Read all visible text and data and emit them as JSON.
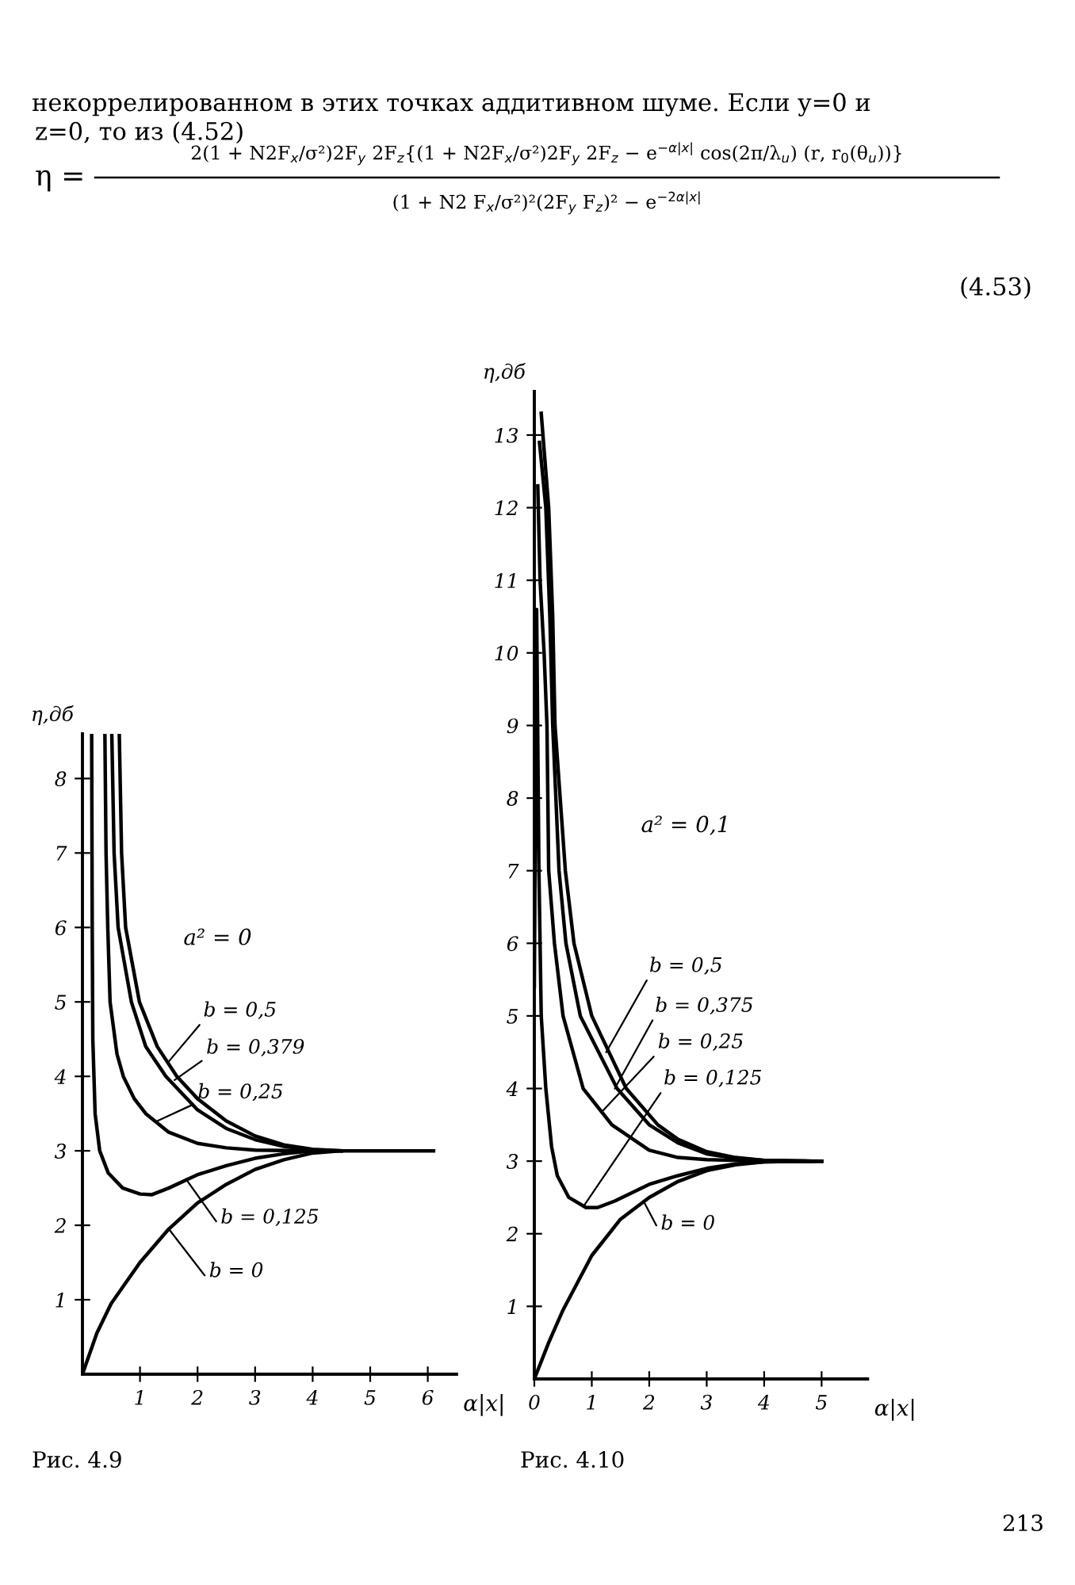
{
  "chart_data": [
    {
      "type": "line",
      "xlabel": "α|x|",
      "ylabel": "η,дб",
      "xlim": [
        0,
        6.5
      ],
      "ylim": [
        0,
        8.6
      ],
      "xticks": [
        1,
        2,
        3,
        4,
        5,
        6
      ],
      "yticks": [
        1,
        2,
        3,
        4,
        5,
        6,
        7,
        8
      ],
      "grid": false,
      "marker": "none",
      "line_style": "solid",
      "series": [
        {
          "color": "#000000",
          "x": [
            0,
            0.25,
            0.5,
            1,
            1.5,
            2,
            2.5,
            3,
            3.5,
            4,
            4.5,
            5,
            6,
            6.1
          ],
          "values": [
            0,
            0.55,
            0.95,
            1.5,
            1.95,
            2.3,
            2.55,
            2.75,
            2.88,
            2.97,
            3.0,
            3.0,
            3.0,
            3.0
          ]
        },
        {
          "color": "#000000",
          "x": [
            0.16,
            0.17,
            0.18,
            0.22,
            0.3,
            0.45,
            0.7,
            1.0,
            1.2,
            1.5,
            2,
            2.5,
            3,
            3.5,
            4,
            6.1
          ],
          "values": [
            8.6,
            6,
            4.5,
            3.5,
            3.0,
            2.7,
            2.5,
            2.42,
            2.41,
            2.5,
            2.68,
            2.8,
            2.9,
            2.96,
            3.0,
            3.0
          ]
        },
        {
          "color": "#000000",
          "x": [
            0.39,
            0.41,
            0.44,
            0.48,
            0.6,
            0.71,
            0.9,
            1.1,
            1.5,
            2,
            2.5,
            3,
            4
          ],
          "values": [
            8.6,
            7,
            6,
            5,
            4.3,
            4,
            3.7,
            3.5,
            3.25,
            3.1,
            3.04,
            3.01,
            3.0
          ]
        },
        {
          "color": "#000000",
          "x": [
            0.51,
            0.55,
            0.62,
            0.85,
            1.1,
            1.45,
            2,
            2.5,
            3,
            3.5,
            4,
            4.5
          ],
          "values": [
            8.6,
            7,
            6,
            5,
            4.4,
            4,
            3.55,
            3.3,
            3.15,
            3.06,
            3.01,
            3.0
          ]
        },
        {
          "color": "#000000",
          "x": [
            0.64,
            0.68,
            0.75,
            0.99,
            1.3,
            1.64,
            2,
            2.5,
            3,
            3.5,
            4,
            4.5
          ],
          "values": [
            8.6,
            7,
            6,
            5,
            4.4,
            4,
            3.7,
            3.4,
            3.2,
            3.08,
            3.02,
            3.0
          ]
        }
      ],
      "annotations": [
        "некоррелированном в этих точках аддитивном шуме. Если y=0 и",
        "z=0, то из (4.52)",
        "η =",
        "2(1 + N2F$_{x}$/σ²)2F$_{y}$ 2F$_{z}${(1 + N2F$_{x}$/σ²)2F$_{y}$ 2F$_{z}$ − e$^{−α|x|}$ cos(2π/λ$_{u}$) (r, r$_{0}$(θ$_{u}$))}",
        "(1 + N2 F$_{x}$/σ²)²(2F$_{y}$ F$_{z}$)² − e$^{−2α|x|}$",
        "(4.53)",
        "a² = 0",
        "Рис. 4.9",
        {
          "text": "b = 0,5",
          "x": 1.5,
          "y": 4.2
        },
        {
          "text": "b = 0,379",
          "x": 1.6,
          "y": 3.95
        },
        {
          "text": "b = 0,25",
          "x": 1.3,
          "y": 3.4
        },
        {
          "text": "b = 0,125",
          "x": 1.8,
          "y": 2.62
        },
        {
          "text": "b = 0",
          "x": 1.5,
          "y": 1.95
        }
      ]
    },
    {
      "type": "line",
      "xlabel": "α|x|",
      "ylabel": "η,дб",
      "xlim": [
        0,
        5.8
      ],
      "ylim": [
        0,
        13.6
      ],
      "xticks": [
        0,
        1,
        2,
        3,
        4,
        5
      ],
      "yticks": [
        1,
        2,
        3,
        4,
        5,
        6,
        7,
        8,
        9,
        10,
        11,
        12,
        13
      ],
      "grid": false,
      "marker": "none",
      "line_style": "solid",
      "series": [
        {
          "color": "#000000",
          "x": [
            0,
            0.25,
            0.5,
            1,
            1.5,
            2,
            2.5,
            3,
            3.5,
            4,
            5
          ],
          "values": [
            0,
            0.5,
            0.95,
            1.7,
            2.2,
            2.5,
            2.72,
            2.87,
            2.95,
            2.99,
            3.0
          ]
        },
        {
          "color": "#000000",
          "x": [
            0,
            0.04,
            0.08,
            0.12,
            0.2,
            0.3,
            0.4,
            0.6,
            0.9,
            1.1,
            1.4,
            2,
            2.5,
            3,
            3.5,
            4,
            5
          ],
          "values": [
            5.4,
            10.6,
            7,
            5,
            4,
            3.2,
            2.8,
            2.5,
            2.36,
            2.36,
            2.45,
            2.68,
            2.8,
            2.9,
            2.96,
            2.99,
            3.0
          ]
        },
        {
          "color": "#000000",
          "x": [
            0.06,
            0.1,
            0.17,
            0.22,
            0.25,
            0.35,
            0.5,
            0.85,
            1.35,
            2,
            2.5,
            3,
            4,
            5
          ],
          "values": [
            12.3,
            11,
            10,
            9,
            7,
            6,
            5,
            4,
            3.5,
            3.15,
            3.05,
            3.02,
            3.0,
            3.0
          ]
        },
        {
          "color": "#000000",
          "x": [
            0.09,
            0.2,
            0.27,
            0.32,
            0.43,
            0.55,
            0.8,
            1.44,
            2,
            2.5,
            3,
            3.5,
            4,
            4.8
          ],
          "values": [
            12.9,
            12,
            10.5,
            9,
            7,
            6,
            5,
            4,
            3.5,
            3.25,
            3.1,
            3.04,
            3.01,
            3.0
          ]
        },
        {
          "color": "#000000",
          "x": [
            0.12,
            0.25,
            0.32,
            0.36,
            0.54,
            0.69,
            1,
            1.6,
            2.15,
            2.5,
            3,
            3.5,
            4,
            5
          ],
          "values": [
            13.3,
            12,
            10.5,
            9,
            7,
            6,
            5,
            4,
            3.5,
            3.3,
            3.13,
            3.05,
            3.01,
            3.0
          ]
        }
      ],
      "annotations": [
        "a² = 0,1",
        "Рис. 4.10",
        "213",
        {
          "text": "b = 0,5",
          "x": 1.25,
          "y": 4.5
        },
        {
          "text": "b = 0,375",
          "x": 1.4,
          "y": 4.0
        },
        {
          "text": "b = 0,25",
          "x": 1.2,
          "y": 3.7
        },
        {
          "text": "b = 0,125",
          "x": 0.85,
          "y": 2.37
        },
        {
          "text": "b = 0",
          "x": 1.9,
          "y": 2.45
        }
      ]
    }
  ]
}
